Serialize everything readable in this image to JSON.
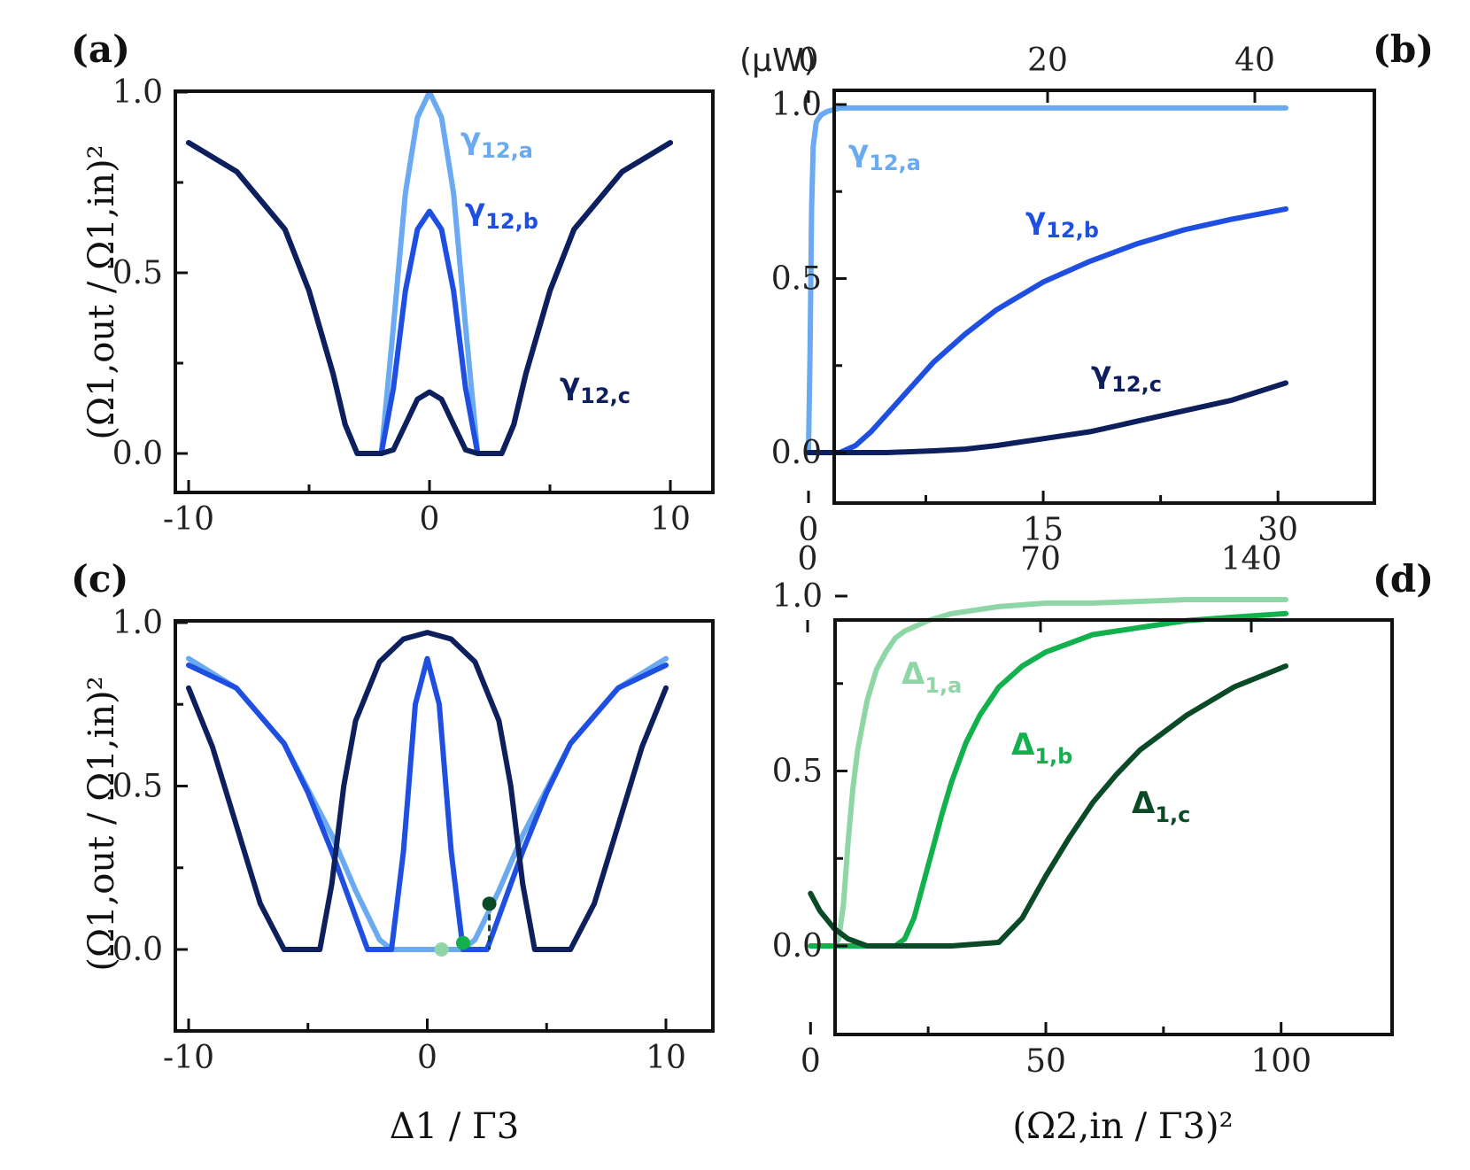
{
  "colors": {
    "blue_a": "#6aaaf0",
    "blue_b": "#1f4fe0",
    "blue_c": "#0d1f5c",
    "green_a": "#8fd6a6",
    "green_b": "#13b04e",
    "green_c": "#0b4a26"
  },
  "chart_data": [
    {
      "panel": "(a)",
      "type": "line",
      "xlim": [
        -10,
        10
      ],
      "ylim": [
        0,
        1
      ],
      "xticks": [
        "-10",
        "0",
        "10"
      ],
      "yticks": [
        "0.0",
        "0.5",
        "1.0"
      ],
      "ylabel": "(Ω1,out / Ω1,in)²",
      "annotations": [
        {
          "text": "γ",
          "sub": "12,a",
          "color": "#6aaaf0"
        },
        {
          "text": "γ",
          "sub": "12,b",
          "color": "#1f4fe0"
        },
        {
          "text": "γ",
          "sub": "12,c",
          "color": "#0d1f5c"
        }
      ],
      "series": [
        {
          "color": "#6aaaf0",
          "x": [
            -10,
            -8,
            -6,
            -5,
            -4,
            -3.5,
            -3,
            -2.5,
            -2,
            -1.5,
            -1,
            -0.5,
            0,
            0.5,
            1,
            1.5,
            2,
            2.5,
            3,
            3.5,
            4,
            5,
            6,
            8,
            10
          ],
          "y": [
            0.86,
            0.78,
            0.62,
            0.45,
            0.22,
            0.08,
            0.0,
            0.0,
            0.0,
            0.35,
            0.72,
            0.93,
            1.0,
            0.93,
            0.72,
            0.35,
            0.0,
            0.0,
            0.0,
            0.08,
            0.22,
            0.45,
            0.62,
            0.78,
            0.86
          ]
        },
        {
          "color": "#1f4fe0",
          "x": [
            -10,
            -8,
            -6,
            -5,
            -4,
            -3.5,
            -3,
            -2.5,
            -2,
            -1.5,
            -1,
            -0.5,
            0,
            0.5,
            1,
            1.5,
            2,
            2.5,
            3,
            3.5,
            4,
            5,
            6,
            8,
            10
          ],
          "y": [
            0.86,
            0.78,
            0.62,
            0.45,
            0.22,
            0.08,
            0.0,
            0.0,
            0.0,
            0.18,
            0.45,
            0.62,
            0.67,
            0.62,
            0.45,
            0.18,
            0.0,
            0.0,
            0.0,
            0.08,
            0.22,
            0.45,
            0.62,
            0.78,
            0.86
          ]
        },
        {
          "color": "#0d1f5c",
          "x": [
            -10,
            -8,
            -6,
            -5,
            -4,
            -3.5,
            -3,
            -2.5,
            -2,
            -1.5,
            -1,
            -0.5,
            0,
            0.5,
            1,
            1.5,
            2,
            2.5,
            3,
            3.5,
            4,
            5,
            6,
            8,
            10
          ],
          "y": [
            0.86,
            0.78,
            0.62,
            0.45,
            0.22,
            0.08,
            0.0,
            0.0,
            0.0,
            0.01,
            0.08,
            0.15,
            0.17,
            0.15,
            0.08,
            0.01,
            0.0,
            0.0,
            0.0,
            0.08,
            0.22,
            0.45,
            0.62,
            0.78,
            0.86
          ]
        }
      ]
    },
    {
      "panel": "(b)",
      "type": "line",
      "xlim": [
        0,
        30.5
      ],
      "ylim": [
        0,
        1
      ],
      "xticks": [
        "0",
        "15",
        "30"
      ],
      "yticks": [
        "0.0",
        "0.5",
        "1.0"
      ],
      "top_axis_label": "(μW)",
      "top_ticks": [
        "0",
        "20",
        "40"
      ],
      "annotations": [
        {
          "text": "γ",
          "sub": "12,a",
          "color": "#6aaaf0"
        },
        {
          "text": "γ",
          "sub": "12,b",
          "color": "#1f4fe0"
        },
        {
          "text": "γ",
          "sub": "12,c",
          "color": "#0d1f5c"
        }
      ],
      "series": [
        {
          "color": "#6aaaf0",
          "x": [
            0,
            0.1,
            0.2,
            0.3,
            0.5,
            0.8,
            1.2,
            2,
            5,
            10,
            20,
            30.5
          ],
          "y": [
            0,
            0.3,
            0.7,
            0.88,
            0.95,
            0.97,
            0.98,
            0.99,
            0.99,
            0.99,
            0.99,
            0.99
          ]
        },
        {
          "color": "#1f4fe0",
          "x": [
            0,
            2,
            3,
            4,
            5,
            6,
            8,
            10,
            12,
            15,
            18,
            21,
            24,
            27,
            30.5
          ],
          "y": [
            0,
            0,
            0.02,
            0.06,
            0.11,
            0.16,
            0.26,
            0.34,
            0.41,
            0.49,
            0.55,
            0.6,
            0.64,
            0.67,
            0.7
          ]
        },
        {
          "color": "#0d1f5c",
          "x": [
            0,
            5,
            8,
            10,
            12,
            15,
            18,
            21,
            24,
            27,
            30.5
          ],
          "y": [
            0,
            0,
            0.005,
            0.01,
            0.02,
            0.04,
            0.06,
            0.09,
            0.12,
            0.15,
            0.2
          ]
        }
      ]
    },
    {
      "panel": "(c)",
      "type": "line",
      "xlim": [
        -10,
        10
      ],
      "ylim": [
        0,
        1
      ],
      "xticks": [
        "-10",
        "0",
        "10"
      ],
      "yticks": [
        "0.0",
        "0.5",
        "1.0"
      ],
      "xlabel": "Δ1 / Γ3",
      "ylabel": "(Ω1,out / Ω1,in)²",
      "series": [
        {
          "color": "#6aaaf0",
          "x": [
            -10,
            -8,
            -6,
            -4,
            -3,
            -2,
            -1.5,
            -1,
            0,
            1,
            1.5,
            2,
            3,
            4,
            6,
            8,
            10
          ],
          "y": [
            0.89,
            0.8,
            0.63,
            0.35,
            0.18,
            0.03,
            0.0,
            0.0,
            0.0,
            0.0,
            0.0,
            0.03,
            0.18,
            0.35,
            0.63,
            0.8,
            0.89
          ]
        },
        {
          "color": "#1f4fe0",
          "x": [
            -10,
            -8,
            -6,
            -5,
            -4,
            -3,
            -2.5,
            -2,
            -1.5,
            -1,
            -0.5,
            0,
            0.5,
            1,
            1.5,
            2,
            2.5,
            3,
            4,
            5,
            6,
            8,
            10
          ],
          "y": [
            0.87,
            0.8,
            0.63,
            0.48,
            0.3,
            0.1,
            0.0,
            0.0,
            0.0,
            0.3,
            0.75,
            0.89,
            0.75,
            0.3,
            0.0,
            0.0,
            0.0,
            0.1,
            0.3,
            0.48,
            0.63,
            0.8,
            0.87
          ]
        },
        {
          "color": "#0d1f5c",
          "x": [
            -10,
            -9,
            -8,
            -7,
            -6,
            -5.5,
            -5,
            -4.5,
            -4,
            -3.5,
            -3,
            -2,
            -1,
            0,
            1,
            2,
            3,
            3.5,
            4,
            4.5,
            5,
            5.5,
            6,
            7,
            8,
            9,
            10
          ],
          "y": [
            0.8,
            0.62,
            0.38,
            0.14,
            0.0,
            0.0,
            0.0,
            0.0,
            0.2,
            0.5,
            0.7,
            0.88,
            0.95,
            0.97,
            0.95,
            0.88,
            0.7,
            0.5,
            0.2,
            0.0,
            0.0,
            0.0,
            0.0,
            0.14,
            0.38,
            0.62,
            0.8
          ]
        }
      ],
      "markers": [
        {
          "x": 0.6,
          "y": 0.0,
          "color": "#8fd6a6"
        },
        {
          "x": 1.5,
          "y": 0.02,
          "color": "#13b04e"
        },
        {
          "x": 2.6,
          "y": 0.14,
          "color": "#0b4a26"
        }
      ]
    },
    {
      "panel": "(d)",
      "type": "line",
      "xlim": [
        -1,
        101
      ],
      "ylim": [
        0,
        1
      ],
      "xticks": [
        "0",
        "50",
        "100"
      ],
      "yticks": [
        "0.0",
        "0.5",
        "1.0"
      ],
      "xlabel": "(Ω2,in / Γ3)²",
      "top_ticks": [
        "0",
        "70",
        "140"
      ],
      "annotations": [
        {
          "text": "Δ",
          "sub": "1,a",
          "color": "#8fd6a6"
        },
        {
          "text": "Δ",
          "sub": "1,b",
          "color": "#13b04e"
        },
        {
          "text": "Δ",
          "sub": "1,c",
          "color": "#0b4a26"
        }
      ],
      "series": [
        {
          "color": "#8fd6a6",
          "x": [
            0,
            5,
            6,
            7,
            8,
            9,
            10,
            12,
            14,
            16,
            18,
            20,
            25,
            30,
            40,
            50,
            60,
            80,
            101
          ],
          "y": [
            0,
            0,
            0.02,
            0.12,
            0.3,
            0.45,
            0.56,
            0.7,
            0.79,
            0.84,
            0.88,
            0.9,
            0.93,
            0.95,
            0.97,
            0.98,
            0.98,
            0.99,
            0.99
          ]
        },
        {
          "color": "#13b04e",
          "x": [
            0,
            18,
            20,
            22,
            24,
            26,
            28,
            30,
            33,
            36,
            40,
            45,
            50,
            60,
            70,
            80,
            90,
            101
          ],
          "y": [
            0,
            0,
            0.02,
            0.08,
            0.18,
            0.28,
            0.38,
            0.47,
            0.58,
            0.66,
            0.74,
            0.8,
            0.84,
            0.89,
            0.91,
            0.93,
            0.94,
            0.95
          ]
        },
        {
          "color": "#0b4a26",
          "x": [
            0,
            2,
            5,
            8,
            12,
            20,
            30,
            40,
            45,
            50,
            55,
            60,
            65,
            70,
            80,
            90,
            101
          ],
          "y": [
            0.15,
            0.1,
            0.05,
            0.02,
            0.0,
            0.0,
            0.0,
            0.01,
            0.08,
            0.2,
            0.31,
            0.41,
            0.49,
            0.56,
            0.66,
            0.74,
            0.8
          ]
        }
      ]
    }
  ]
}
